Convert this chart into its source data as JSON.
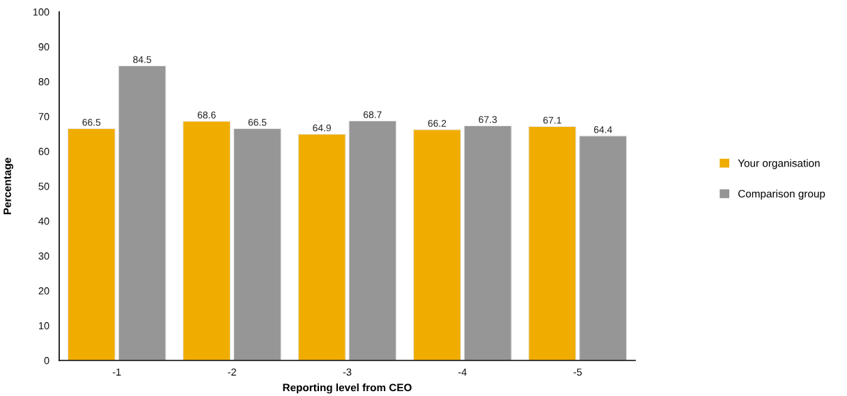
{
  "chart_data": {
    "type": "bar",
    "xlabel": "Reporting level from CEO",
    "ylabel": "Percentage",
    "categories": [
      "-1",
      "-2",
      "-3",
      "-4",
      "-5"
    ],
    "series": [
      {
        "name": "Your organisation",
        "color": "#f0ad00",
        "values": [
          66.5,
          68.6,
          64.9,
          66.2,
          67.1
        ]
      },
      {
        "name": "Comparison group",
        "color": "#969696",
        "values": [
          84.5,
          66.5,
          68.7,
          67.3,
          64.4
        ]
      }
    ],
    "ylim": [
      0,
      100
    ],
    "yticks": [
      0,
      10,
      20,
      30,
      40,
      50,
      60,
      70,
      80,
      90,
      100
    ],
    "data_labels": true,
    "legend": "right",
    "grid": false
  }
}
